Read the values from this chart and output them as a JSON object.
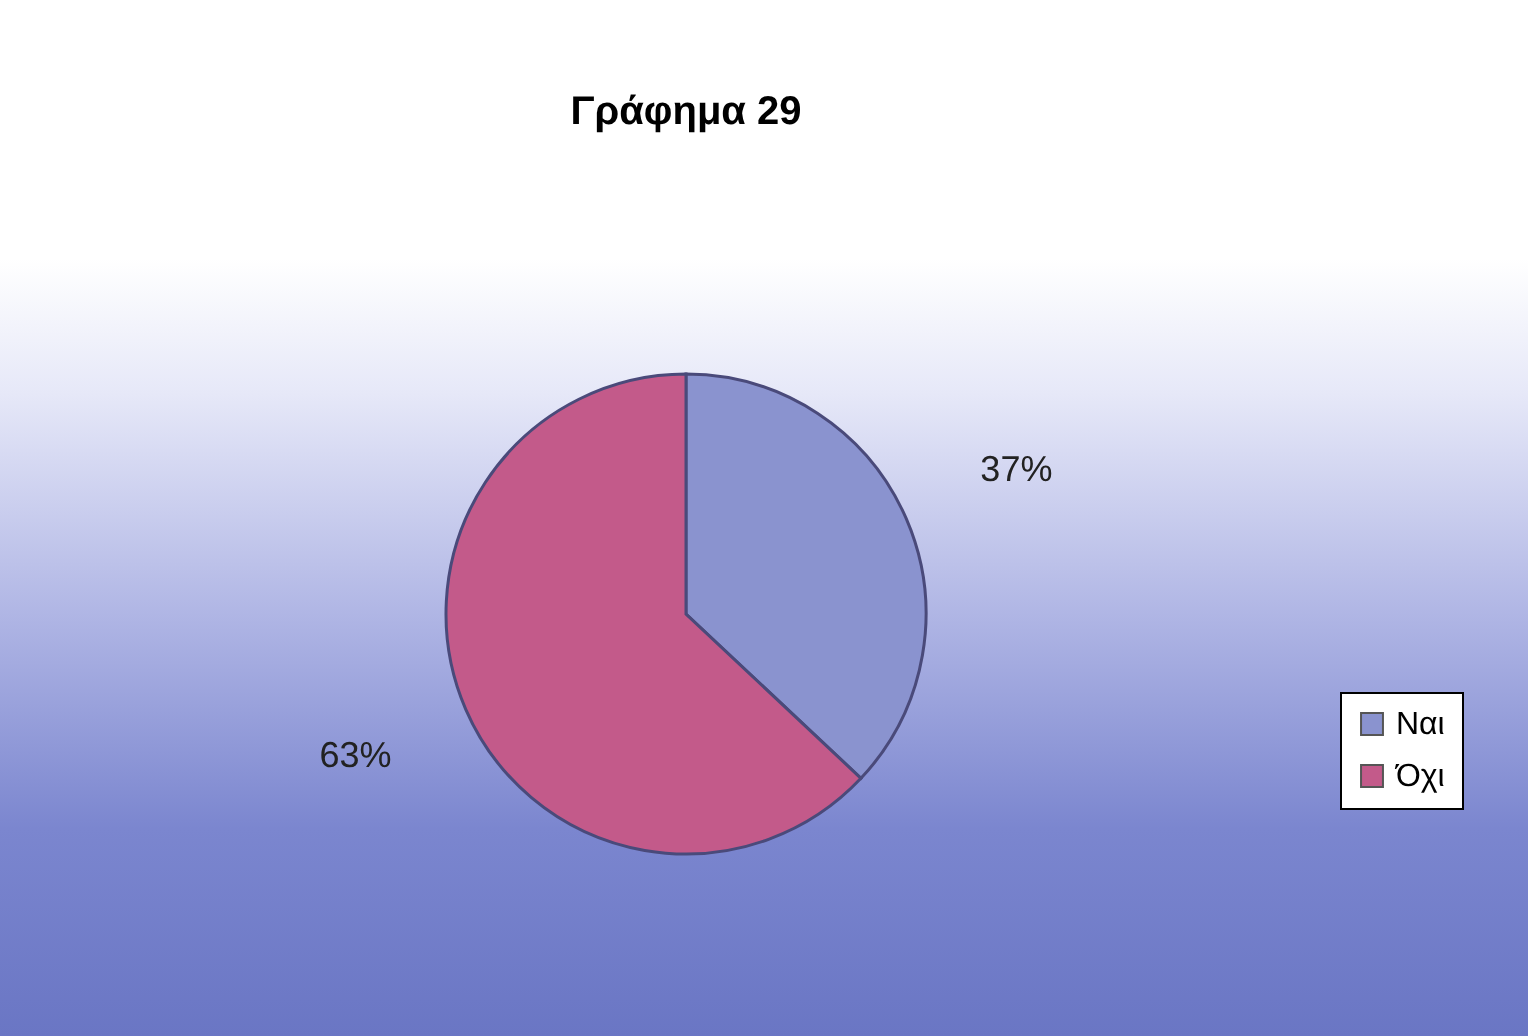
{
  "chart_data": {
    "type": "pie",
    "title": "Γράφημα 29",
    "categories": [
      "Ναι",
      "Όχι"
    ],
    "values": [
      37,
      63
    ],
    "colors": [
      "#8a93cf",
      "#c35a8a"
    ],
    "value_labels": [
      "37%",
      "63%"
    ],
    "legend": "right"
  }
}
